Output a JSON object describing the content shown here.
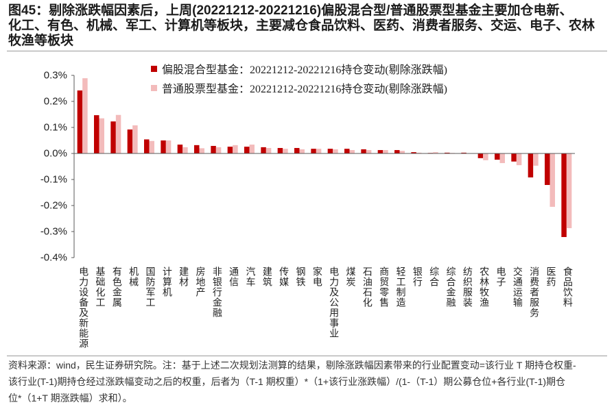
{
  "chart_data": {
    "type": "bar",
    "title": [
      "图45：剔除涨跌幅因素后，上周(20221212-20221216)偏股混合型/普通股票型基金主要加仓电新、",
      "化工、有色、机械、军工、计算机等板块，主要减仓食品饮料、医药、消费者服务、交运、电子、农林",
      "牧渔等板块"
    ],
    "categories": [
      "电力设备及新能源",
      "基础化工",
      "有色金属",
      "机械",
      "国防军工",
      "计算机",
      "建材",
      "房地产",
      "非银行金融",
      "通信",
      "汽车",
      "建筑",
      "传媒",
      "钢铁",
      "家电",
      "电力及公用事业",
      "煤炭",
      "石油石化",
      "商贸零售",
      "轻工制造",
      "银行",
      "综合",
      "综合金融",
      "纺织服装",
      "农林牧渔",
      "电子",
      "交通运输",
      "消费者服务",
      "医药",
      "食品饮料"
    ],
    "series": [
      {
        "name": "偏股混合型基金：20221212-20221216持仓变动(剔除涨跌幅)",
        "color": "#C00000",
        "values": [
          0.242,
          0.147,
          0.123,
          0.092,
          0.054,
          0.05,
          0.034,
          0.032,
          0.029,
          0.026,
          0.026,
          0.024,
          0.021,
          0.021,
          0.018,
          0.018,
          0.018,
          0.016,
          0.013,
          0.013,
          0.005,
          0.002,
          0.003,
          0.003,
          -0.018,
          -0.024,
          -0.031,
          -0.092,
          -0.121,
          -0.321
        ]
      },
      {
        "name": "普通股票型基金：20221212-20221216持仓变动(剔除涨跌幅)",
        "color": "#F3BBBB",
        "values": [
          0.289,
          0.135,
          0.148,
          0.108,
          0.048,
          0.05,
          0.024,
          0.02,
          0.024,
          0.032,
          0.034,
          0.021,
          0.018,
          0.016,
          0.018,
          0.016,
          0.013,
          0.013,
          0.013,
          0.01,
          0.003,
          0.005,
          0.002,
          0.001,
          -0.026,
          -0.037,
          -0.045,
          -0.047,
          -0.205,
          -0.287
        ]
      }
    ],
    "ylim": [
      -0.4,
      0.3
    ],
    "yticks": [
      0.3,
      0.2,
      0.1,
      0.0,
      -0.1,
      -0.2,
      -0.3,
      -0.4
    ],
    "ytick_labels": [
      "0.3%",
      "0.2%",
      "0.1%",
      "0.0%",
      "-0.1%",
      "-0.2%",
      "-0.3%",
      "-0.4%"
    ],
    "xlabel": "",
    "ylabel": "",
    "legend": "top-center",
    "grid": false
  },
  "footnote": [
    "资料来源：wind，民生证券研究院。注：基于上述二次规划法测算的结果，剔除涨跌幅因素带来的行业配置变动=该行业 T 期持仓权重-",
    "该行业(T-1)期持仓经过涨跌幅变动之后的权重，后者为（T-1 期权重）*（1+该行业涨跌幅）/(1-（T-1）期公募仓位+各行业(T-1)期仓",
    "位*（1+T 期涨跌幅）求和）。"
  ]
}
